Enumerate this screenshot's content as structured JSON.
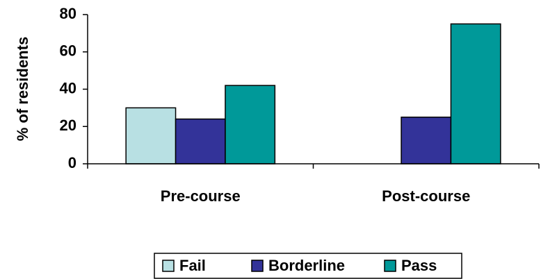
{
  "chart_data": {
    "type": "bar",
    "y_label": "% of residents",
    "categories": [
      "Pre-course",
      "Post-course"
    ],
    "series": [
      {
        "name": "Fail",
        "color": "#b8e0e3",
        "values": [
          30,
          null
        ]
      },
      {
        "name": "Borderline",
        "color": "#333399",
        "values": [
          24,
          25
        ]
      },
      {
        "name": "Pass",
        "color": "#009999",
        "values": [
          42,
          75
        ]
      }
    ],
    "ylim": [
      0,
      80
    ],
    "yticks": [
      0,
      20,
      40,
      60,
      80
    ],
    "grid": false,
    "legend": "bottom"
  }
}
